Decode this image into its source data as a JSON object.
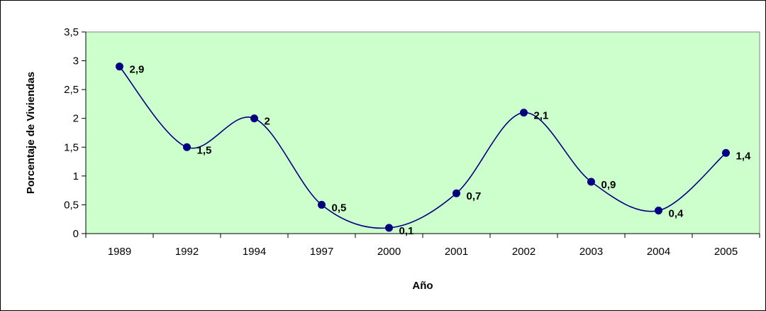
{
  "chart_data": {
    "type": "line",
    "categories": [
      "1989",
      "1992",
      "1994",
      "1997",
      "2000",
      "2001",
      "2002",
      "2003",
      "2004",
      "2005"
    ],
    "values": [
      2.9,
      1.5,
      2,
      0.5,
      0.1,
      0.7,
      2.1,
      0.9,
      0.4,
      1.4
    ],
    "data_labels": [
      "2,9",
      "1,5",
      "2",
      "0,5",
      "0,1",
      "0,7",
      "2,1",
      "0,9",
      "0,4",
      "1,4"
    ],
    "y_ticks": [
      0,
      0.5,
      1,
      1.5,
      2,
      2.5,
      3,
      3.5
    ],
    "y_tick_labels": [
      "0",
      "0,5",
      "1",
      "1,5",
      "2",
      "2,5",
      "3",
      "3,5"
    ],
    "ylim": [
      0,
      3.5
    ],
    "xlabel": "Año",
    "ylabel": "Porcentaje de Viviendas",
    "title": "",
    "grid": false,
    "legend": "none",
    "smooth": true,
    "colors": {
      "plot_background": "#CCFFCC",
      "line": "#000080",
      "marker": "#000080"
    }
  }
}
